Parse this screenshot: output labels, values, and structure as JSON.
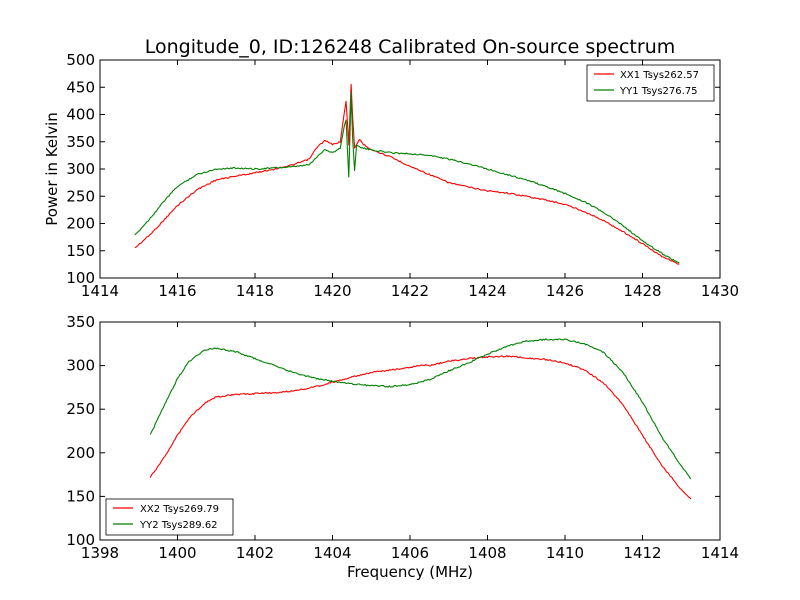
{
  "figure": {
    "title": "Longitude_0, ID:126248 Calibrated On-source spectrum",
    "xlabel": "Frequency (MHz)"
  },
  "colors": {
    "xx": "#ff0000",
    "yy": "#008000",
    "axes": "#000000",
    "background": "#ffffff"
  },
  "chart_data": [
    {
      "type": "line",
      "panel": "top",
      "title": "Longitude_0, ID:126248 Calibrated On-source spectrum",
      "xlabel": "",
      "ylabel": "Power in Kelvin",
      "xlim": [
        1414,
        1430
      ],
      "ylim": [
        100,
        500
      ],
      "xticks": [
        "1414",
        "1416",
        "1418",
        "1420",
        "1422",
        "1424",
        "1426",
        "1428",
        "1430"
      ],
      "yticks": [
        "100",
        "150",
        "200",
        "250",
        "300",
        "350",
        "400",
        "450",
        "500"
      ],
      "grid": false,
      "legend_position": "top-right",
      "series": [
        {
          "name": "XX1 Tsys262.57",
          "color": "#ff0000",
          "x": [
            1414.9,
            1415.3,
            1415.7,
            1416.0,
            1416.5,
            1417.0,
            1417.5,
            1418.0,
            1418.5,
            1419.0,
            1419.4,
            1419.6,
            1419.8,
            1420.0,
            1420.2,
            1420.3,
            1420.35,
            1420.42,
            1420.48,
            1420.52,
            1420.57,
            1420.62,
            1420.7,
            1420.8,
            1421.0,
            1421.5,
            1422.0,
            1422.5,
            1423.0,
            1423.5,
            1424.0,
            1424.5,
            1425.0,
            1425.5,
            1426.0,
            1426.5,
            1427.0,
            1427.5,
            1428.0,
            1428.5,
            1428.95
          ],
          "y": [
            155,
            180,
            210,
            233,
            262,
            280,
            287,
            293,
            300,
            308,
            318,
            340,
            352,
            345,
            350,
            400,
            425,
            345,
            455,
            395,
            338,
            345,
            355,
            345,
            336,
            322,
            305,
            290,
            275,
            267,
            260,
            256,
            250,
            243,
            235,
            222,
            205,
            185,
            163,
            140,
            125
          ]
        },
        {
          "name": "YY1 Tsys276.75",
          "color": "#008000",
          "x": [
            1414.9,
            1415.3,
            1415.7,
            1416.0,
            1416.5,
            1417.0,
            1417.5,
            1418.0,
            1418.5,
            1419.0,
            1419.4,
            1419.6,
            1419.8,
            1420.0,
            1420.2,
            1420.3,
            1420.35,
            1420.42,
            1420.48,
            1420.52,
            1420.57,
            1420.62,
            1420.7,
            1420.8,
            1421.0,
            1421.5,
            1422.0,
            1422.5,
            1423.0,
            1423.5,
            1424.0,
            1424.5,
            1425.0,
            1425.5,
            1426.0,
            1426.5,
            1427.0,
            1427.5,
            1428.0,
            1428.5,
            1428.95
          ],
          "y": [
            178,
            210,
            245,
            268,
            290,
            300,
            302,
            300,
            302,
            304,
            308,
            322,
            336,
            330,
            338,
            378,
            390,
            285,
            440,
            355,
            298,
            345,
            340,
            338,
            335,
            330,
            328,
            325,
            318,
            310,
            300,
            290,
            280,
            268,
            255,
            240,
            220,
            196,
            168,
            145,
            127
          ]
        }
      ]
    },
    {
      "type": "line",
      "panel": "bottom",
      "title": "",
      "xlabel": "Frequency (MHz)",
      "ylabel": "",
      "xlim": [
        1398,
        1414
      ],
      "ylim": [
        100,
        350
      ],
      "xticks": [
        "1398",
        "1400",
        "1402",
        "1404",
        "1406",
        "1408",
        "1410",
        "1412",
        "1414"
      ],
      "yticks": [
        "100",
        "150",
        "200",
        "250",
        "300",
        "350"
      ],
      "grid": false,
      "legend_position": "bottom-left",
      "series": [
        {
          "name": "XX2 Tsys269.79",
          "color": "#ff0000",
          "x": [
            1399.3,
            1399.7,
            1400.0,
            1400.3,
            1400.7,
            1401.0,
            1401.5,
            1402.0,
            1402.5,
            1403.0,
            1403.5,
            1404.0,
            1404.5,
            1405.0,
            1405.5,
            1406.0,
            1406.3,
            1406.5,
            1407.0,
            1407.5,
            1408.0,
            1408.5,
            1409.0,
            1409.5,
            1410.0,
            1410.5,
            1411.0,
            1411.5,
            1412.0,
            1412.5,
            1413.0,
            1413.25
          ],
          "y": [
            172,
            198,
            220,
            240,
            257,
            264,
            267,
            268,
            269,
            271,
            275,
            281,
            287,
            292,
            295,
            298,
            301,
            300,
            305,
            308,
            310,
            311,
            309,
            307,
            303,
            295,
            280,
            255,
            220,
            185,
            158,
            147
          ]
        },
        {
          "name": "YY2 Tsys289.62",
          "color": "#008000",
          "x": [
            1399.3,
            1399.7,
            1400.0,
            1400.3,
            1400.7,
            1401.0,
            1401.5,
            1402.0,
            1402.5,
            1403.0,
            1403.5,
            1404.0,
            1404.5,
            1405.0,
            1405.5,
            1406.0,
            1406.5,
            1407.0,
            1407.5,
            1408.0,
            1408.5,
            1409.0,
            1409.5,
            1410.0,
            1410.5,
            1411.0,
            1411.5,
            1412.0,
            1412.5,
            1413.0,
            1413.25
          ],
          "y": [
            221,
            258,
            285,
            305,
            318,
            320,
            316,
            308,
            300,
            292,
            286,
            282,
            279,
            277,
            276,
            278,
            284,
            294,
            303,
            313,
            322,
            328,
            330,
            330,
            325,
            315,
            292,
            258,
            218,
            185,
            170
          ]
        }
      ]
    }
  ]
}
